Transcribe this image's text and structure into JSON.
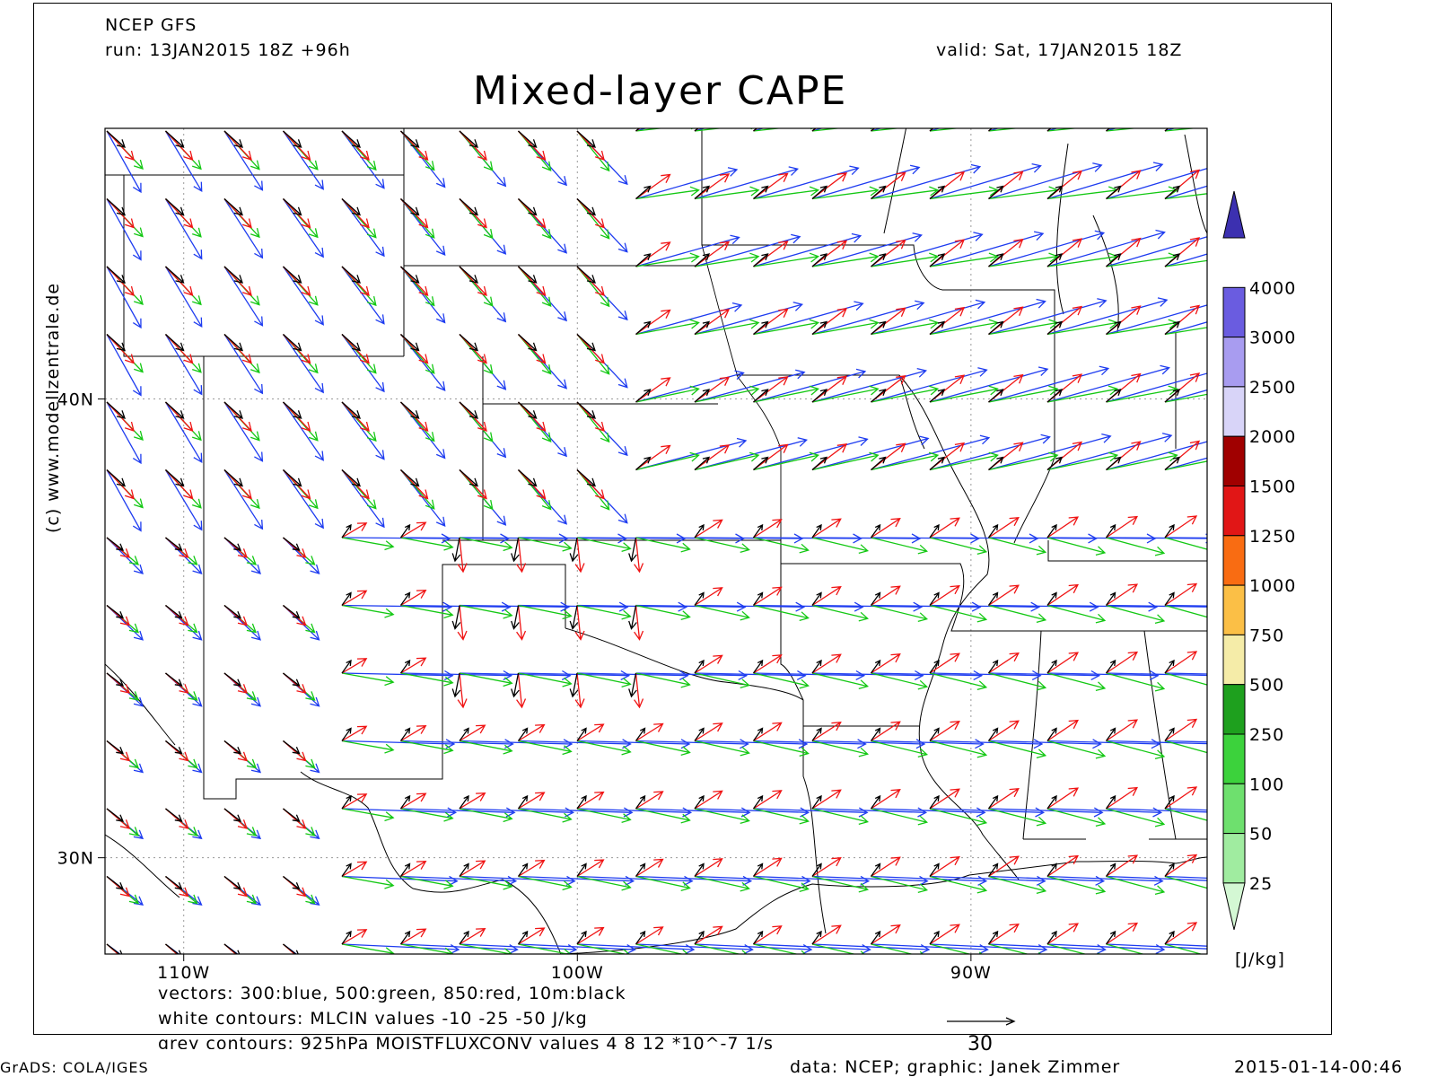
{
  "header": {
    "model": "NCEP GFS",
    "run": "run: 13JAN2015 18Z +96h",
    "valid": "valid: Sat, 17JAN2015 18Z",
    "title": "Mixed-layer CAPE"
  },
  "map": {
    "lon_range": [
      -112,
      -84
    ],
    "lat_range": [
      27.9,
      45.9
    ],
    "lat_labels": [
      {
        "text": "40N",
        "lat": 40
      },
      {
        "text": "30N",
        "lat": 30
      }
    ],
    "lon_labels": [
      {
        "text": "110W",
        "lon": -110
      },
      {
        "text": "100W",
        "lon": -100
      },
      {
        "text": "90W",
        "lon": -90
      }
    ],
    "gridlines": "dashed grey at 10 degree intervals"
  },
  "legend": {
    "unit": "[J/kg]",
    "levels": [
      "25",
      "50",
      "100",
      "250",
      "500",
      "750",
      "1000",
      "1250",
      "1500",
      "2000",
      "2500",
      "3000",
      "4000"
    ],
    "colors": [
      "#d4f8d4",
      "#a0eca0",
      "#6ee06e",
      "#3cd23c",
      "#1ea01e",
      "#f5eca8",
      "#fbbf46",
      "#f96c12",
      "#e11616",
      "#a00000",
      "#d8d4f8",
      "#a89cf0",
      "#6a5ce0",
      "#3c30b0"
    ]
  },
  "vector_legend": {
    "colors": {
      "300": "#1e3cf0",
      "500": "#14c814",
      "850": "#f01414",
      "10m": "#000000"
    },
    "reference_value": "30"
  },
  "notes": [
    "vectors: 300:blue, 500:green, 850:red, 10m:black",
    "white contours: MLCIN values -10 -25 -50 J/kg",
    "grey contours: 925hPa MOISTFLUXCONV values 4 8 12 *10^-7 1/s"
  ],
  "footer": {
    "left": "GrADS: COLA/IGES",
    "center": "data: NCEP; graphic: Janek Zimmer",
    "right": "2015-01-14-00:46"
  },
  "side_credit": "(c) www.modellzentrale.de"
}
